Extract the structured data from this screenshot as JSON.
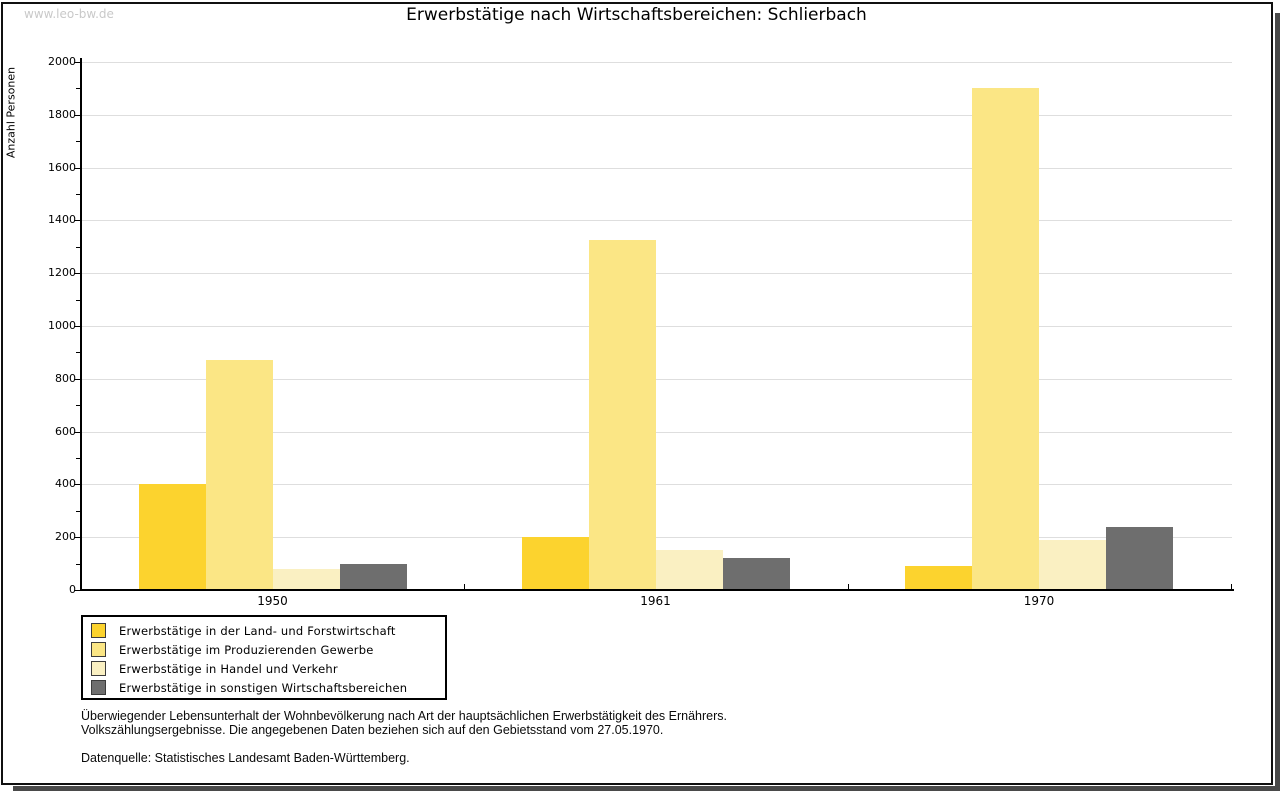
{
  "watermark": "www.leo-bw.de",
  "chart_data": {
    "type": "bar",
    "title": "Erwerbstätige nach Wirtschaftsbereichen: Schlierbach",
    "ylabel": "Anzahl Personen",
    "xlabel": "",
    "categories": [
      "1950",
      "1961",
      "1970"
    ],
    "series": [
      {
        "name": "Erwerbstätige in der Land- und Forstwirtschaft",
        "color": "#fcd32e",
        "values": [
          400,
          200,
          90
        ]
      },
      {
        "name": "Erwerbstätige im Produzierenden Gewerbe",
        "color": "#fbe685",
        "values": [
          870,
          1325,
          1900
        ]
      },
      {
        "name": "Erwerbstätige in Handel und Verkehr",
        "color": "#faf0c2",
        "values": [
          80,
          150,
          190
        ]
      },
      {
        "name": "Erwerbstätige in sonstigen Wirtschaftsbereichen",
        "color": "#6e6e6e",
        "values": [
          100,
          120,
          240
        ]
      }
    ],
    "ylim": [
      0,
      2000
    ],
    "ytick_step": 200,
    "yminor_step": 100,
    "grid": true,
    "gridline_color": "#dedede",
    "legend_position": "bottom-left"
  },
  "footer": {
    "note_line1": "Überwiegender Lebensunterhalt der Wohnbevölkerung nach Art der hauptsächlichen Erwerbstätigkeit des Ernährers.",
    "note_line2": "Volkszählungsergebnisse. Die angegebenen Daten beziehen sich auf den Gebietsstand vom 27.05.1970.",
    "source": "Datenquelle: Statistisches Landesamt Baden-Württemberg."
  }
}
